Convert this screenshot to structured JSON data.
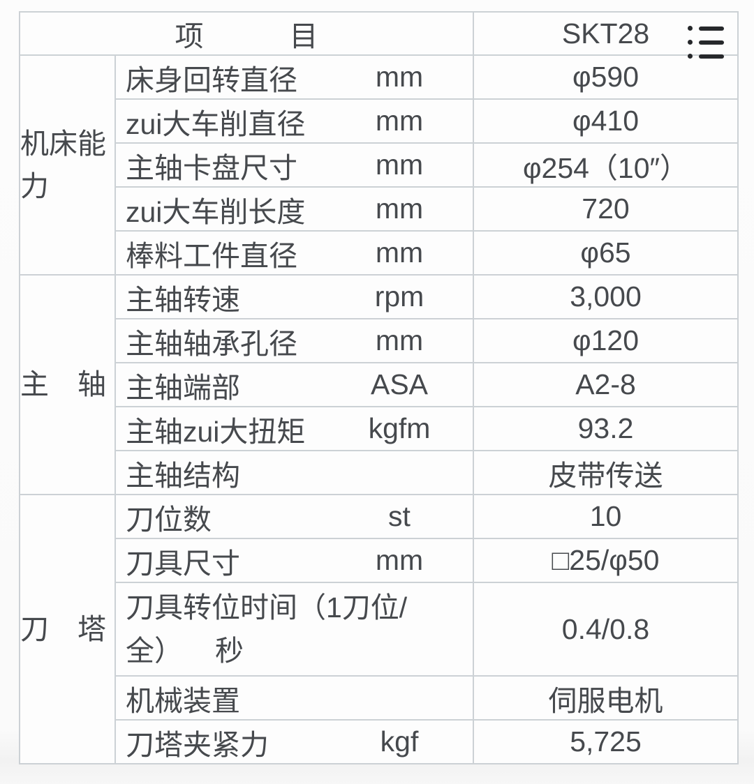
{
  "header": {
    "item_column": "项　　　目",
    "model_column": "SKT28"
  },
  "icons": {
    "top_right": "bulleted-list-icon"
  },
  "colors": {
    "text": "#46494d",
    "header_text": "#3c4044",
    "border_inner": "#ccd1d5",
    "border_outer": "#b3b9bd",
    "icon": "#26282b",
    "table_background": "#fdfdfd"
  },
  "groups": [
    {
      "name": "机床能力",
      "rows": [
        {
          "label": "床身回转直径",
          "unit": "mm",
          "value": "φ590"
        },
        {
          "label": "zui大车削直径",
          "unit": "mm",
          "value": "φ410"
        },
        {
          "label": "主轴卡盘尺寸",
          "unit": "mm",
          "value": "φ254（10″）"
        },
        {
          "label": "zui大车削长度",
          "unit": "mm",
          "value": "720"
        },
        {
          "label": "棒料工件直径",
          "unit": "mm",
          "value": "φ65"
        }
      ]
    },
    {
      "name": "主　轴",
      "rows": [
        {
          "label": "主轴转速",
          "unit": "rpm",
          "value": "3,000"
        },
        {
          "label": "主轴轴承孔径",
          "unit": "mm",
          "value": "φ120"
        },
        {
          "label": "主轴端部",
          "unit": "ASA",
          "value": "A2-8"
        },
        {
          "label": "主轴zui大扭矩",
          "unit": "kgfm",
          "value": "93.2"
        },
        {
          "label": "主轴结构",
          "unit": "",
          "value": "皮带传送"
        }
      ]
    },
    {
      "name": "刀　塔",
      "rows": [
        {
          "label": "刀位数",
          "unit": "st",
          "value": "10"
        },
        {
          "label": "刀具尺寸",
          "unit": "mm",
          "value": "□25/φ50"
        },
        {
          "label": "刀具转位时间（1刀位/\n全）",
          "unit": "秒",
          "unit_inline": true,
          "tall": true,
          "value": "0.4/0.8"
        },
        {
          "label": "机械装置",
          "unit": "",
          "value": "伺服电机"
        },
        {
          "label": "刀塔夹紧力",
          "unit": "kgf",
          "value": "5,725"
        }
      ]
    }
  ]
}
